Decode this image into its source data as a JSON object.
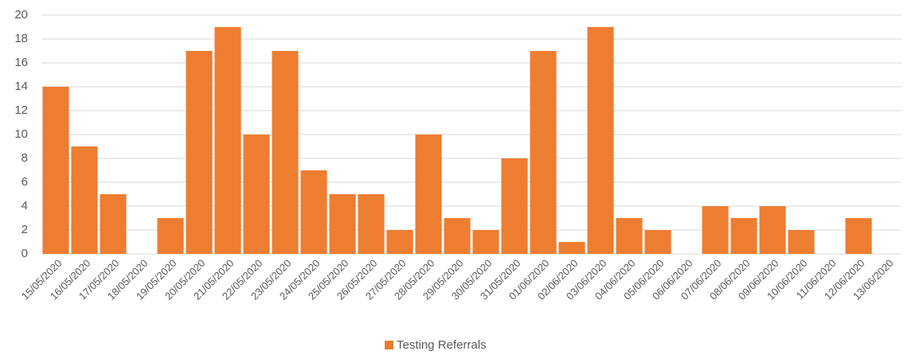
{
  "chart_data": {
    "type": "bar",
    "categories": [
      "15/05/2020",
      "16/05/2020",
      "17/05/2020",
      "18/05/2020",
      "19/05/2020",
      "20/05/2020",
      "21/05/2020",
      "22/05/2020",
      "23/05/2020",
      "24/05/2020",
      "25/05/2020",
      "26/05/2020",
      "27/05/2020",
      "28/05/2020",
      "29/05/2020",
      "30/05/2020",
      "31/05/2020",
      "01/06/2020",
      "02/06/2020",
      "03/06/2020",
      "04/06/2020",
      "05/06/2020",
      "06/06/2020",
      "07/06/2020",
      "08/06/2020",
      "09/06/2020",
      "10/06/2020",
      "11/06/2020",
      "12/06/2020",
      "13/06/2020"
    ],
    "series": [
      {
        "name": "Testing Referrals",
        "color": "#ed7d31",
        "values": [
          14,
          9,
          5,
          0,
          3,
          17,
          19,
          10,
          17,
          7,
          5,
          5,
          2,
          10,
          3,
          2,
          8,
          17,
          1,
          19,
          3,
          2,
          0,
          4,
          3,
          4,
          2,
          0,
          3,
          0
        ]
      }
    ],
    "ylim": [
      0,
      20
    ],
    "yticks": [
      0,
      2,
      4,
      6,
      8,
      10,
      12,
      14,
      16,
      18,
      20
    ],
    "grid": true,
    "legend": "bottom"
  }
}
